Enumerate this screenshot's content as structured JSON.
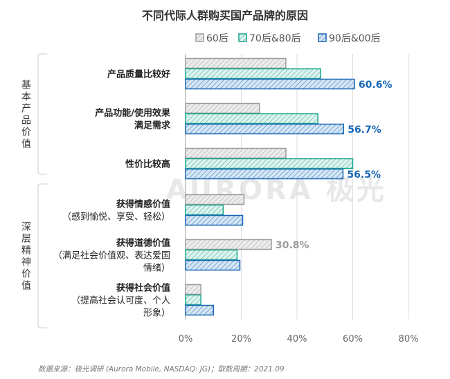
{
  "chart_data": {
    "type": "bar",
    "orientation": "horizontal",
    "title": "不同代际人群购买国产品牌的原因",
    "groups": [
      {
        "label": "基本产品价值",
        "categories": [
          0,
          1,
          2
        ]
      },
      {
        "label": "深层精神价值",
        "categories": [
          3,
          4,
          5
        ]
      }
    ],
    "categories": [
      {
        "name": "产品质量比较好",
        "sub": ""
      },
      {
        "name": "产品功能/使用效果满足需求",
        "sub": ""
      },
      {
        "name": "性价比较高",
        "sub": ""
      },
      {
        "name": "获得情感价值",
        "sub": "（感到愉悦、享受、轻松）"
      },
      {
        "name": "获得道德价值",
        "sub": "（满足社会价值观、表达爱国情绪）"
      },
      {
        "name": "获得社会价值",
        "sub": "（提高社会认可度、个人形象）"
      }
    ],
    "series": [
      {
        "name": "60后",
        "color": "#9b9b9b",
        "fill": "#ececec",
        "values": [
          36.0,
          26.5,
          36.0,
          21.0,
          30.8,
          5.5
        ]
      },
      {
        "name": "70后&80后",
        "color": "#1aa58c",
        "fill": "#dff3ee",
        "values": [
          48.5,
          47.5,
          60.0,
          13.5,
          18.5,
          5.5
        ]
      },
      {
        "name": "90后&00后",
        "color": "#1565b5",
        "fill": "#d7e6f5",
        "values": [
          60.6,
          56.7,
          56.5,
          20.5,
          19.5,
          10.0
        ]
      }
    ],
    "data_labels": [
      {
        "category": 0,
        "series": 2,
        "text": "60.6%"
      },
      {
        "category": 1,
        "series": 2,
        "text": "56.7%"
      },
      {
        "category": 2,
        "series": 2,
        "text": "56.5%"
      },
      {
        "category": 4,
        "series": 0,
        "text": "30.8%"
      }
    ],
    "xticks": [
      "0%",
      "20%",
      "40%",
      "60%",
      "80%"
    ],
    "xlim": [
      0,
      80
    ],
    "grid": true,
    "legend": "top-center"
  },
  "watermark": "AURORA 极光",
  "source": "数据来源：极光调研 (Aurora Mobile, NASDAQ: JG)；取数周期：2021.09"
}
